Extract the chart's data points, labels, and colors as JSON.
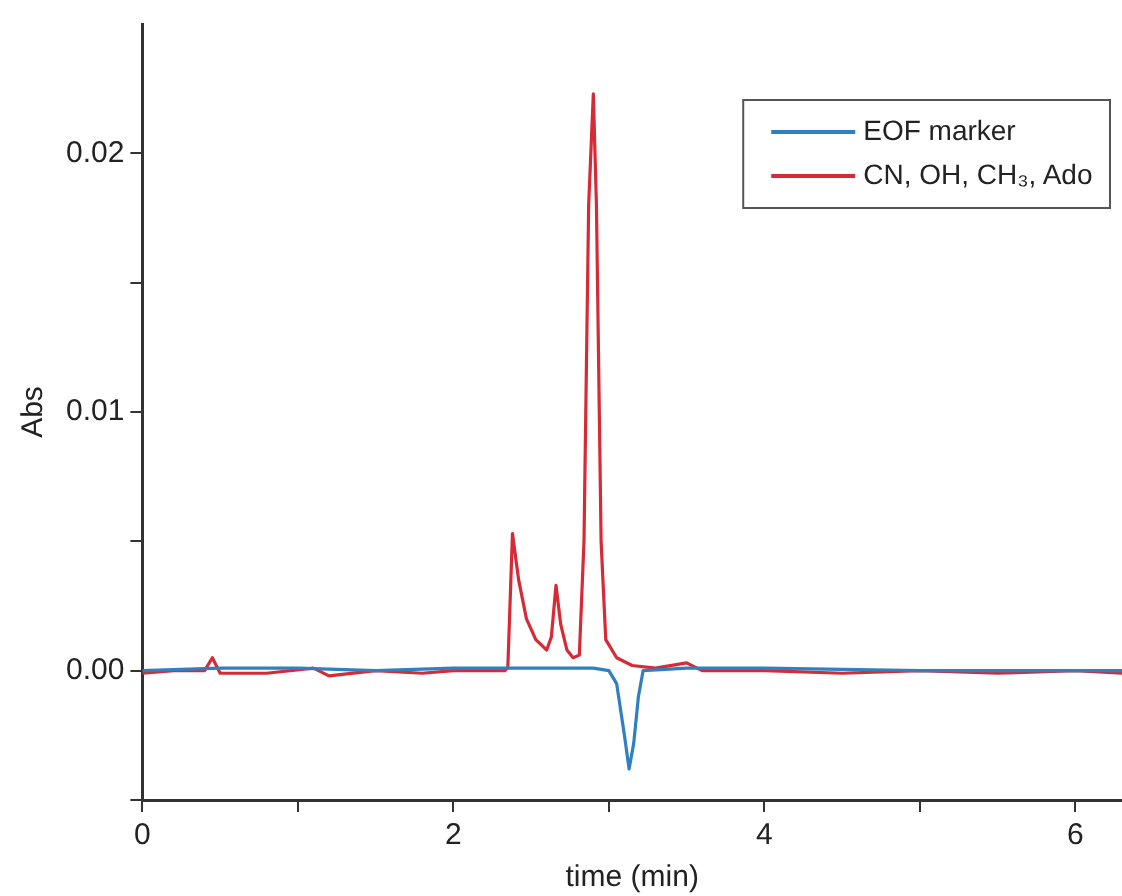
{
  "chart_data": {
    "type": "line",
    "xlabel": "time (min)",
    "ylabel": "Abs",
    "xlim": [
      0,
      6.3
    ],
    "xticks": [
      0,
      {
        "value": 1,
        "label": null
      },
      2,
      {
        "value": 3,
        "label": null
      },
      4,
      {
        "value": 5,
        "label": null
      },
      6
    ],
    "ylim": [
      -0.005,
      0.025
    ],
    "yticks": [
      {
        "value": -0.005,
        "label": null
      },
      {
        "value": 0,
        "label": "0.00"
      },
      {
        "value": 0.005,
        "label": null
      },
      {
        "value": 0.01,
        "label": "0.01"
      },
      {
        "value": 0.015,
        "label": null
      },
      {
        "value": 0.02,
        "label": "0.02"
      }
    ],
    "grid": false,
    "legend": "top right",
    "marker": "none",
    "line_style": "solid",
    "series": [
      {
        "name": "EOF marker",
        "color": "#2f7fc1",
        "x": [
          0,
          0.5,
          1,
          1.5,
          2,
          2.5,
          2.9,
          3.0,
          3.05,
          3.1,
          3.13,
          3.16,
          3.19,
          3.22,
          3.5,
          4,
          5,
          6,
          6.3
        ],
        "values": [
          0,
          0.0001,
          0.0001,
          0,
          0.0001,
          0.0001,
          0.0001,
          0,
          -0.0005,
          -0.0025,
          -0.0038,
          -0.0028,
          -0.001,
          0,
          0.0001,
          0.0001,
          0,
          0,
          0
        ]
      },
      {
        "name": "CN, OH, CH₃, Ado",
        "color": "#d62a36",
        "x": [
          0,
          0.2,
          0.4,
          0.45,
          0.5,
          0.8,
          1.1,
          1.2,
          1.5,
          1.8,
          2.0,
          2.2,
          2.33,
          2.35,
          2.38,
          2.42,
          2.47,
          2.53,
          2.6,
          2.63,
          2.66,
          2.69,
          2.73,
          2.77,
          2.81,
          2.84,
          2.87,
          2.9,
          2.92,
          2.95,
          2.98,
          3.05,
          3.15,
          3.3,
          3.5,
          3.6,
          4,
          4.5,
          5,
          5.5,
          6,
          6.3
        ],
        "values": [
          -0.0001,
          0,
          0,
          0.0005,
          -0.0001,
          -0.0001,
          0.0001,
          -0.0002,
          0,
          -0.0001,
          0,
          0,
          0,
          0.0001,
          0.0053,
          0.0035,
          0.002,
          0.0012,
          0.0008,
          0.0013,
          0.0033,
          0.0018,
          0.0008,
          0.0005,
          0.0006,
          0.005,
          0.018,
          0.0223,
          0.018,
          0.005,
          0.0012,
          0.0005,
          0.0002,
          0.0001,
          0.0003,
          0,
          0,
          -0.0001,
          0,
          -0.0001,
          0,
          -0.0001
        ]
      }
    ]
  }
}
